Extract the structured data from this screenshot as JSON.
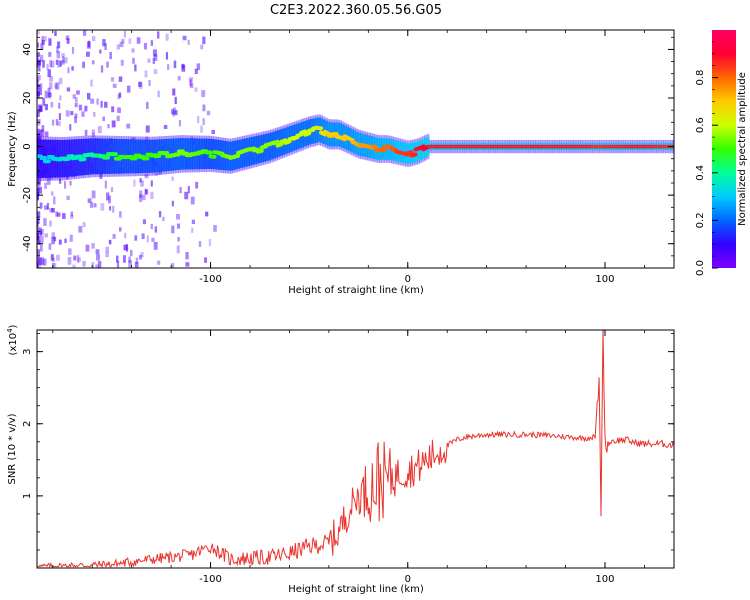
{
  "figure": {
    "title": "C2E3.2022.360.05.56.G05"
  },
  "colors": {
    "snr_line": "#e8352e",
    "ridge": "#e8333f",
    "axis": "#000000",
    "colormap": [
      "#7f00ff",
      "#3300ff",
      "#0066ff",
      "#00ccff",
      "#00ff99",
      "#33ff00",
      "#ccff00",
      "#ffcc00",
      "#ff6600",
      "#ff0033",
      "#ff0066"
    ]
  },
  "chart_data": [
    {
      "type": "heatmap",
      "title": "",
      "xlabel": "Height of straight line (km)",
      "ylabel": "Frequency (Hz)",
      "xlim": [
        -188,
        135
      ],
      "ylim": [
        -50,
        48
      ],
      "xticks": [
        -100,
        0,
        100
      ],
      "yticks": [
        -40,
        -20,
        0,
        20,
        40
      ],
      "grid": false,
      "ridge": {
        "name": "",
        "x": [
          -188,
          -175,
          -160,
          -145,
          -130,
          -115,
          -100,
          -90,
          -80,
          -70,
          -60,
          -50,
          -45,
          -40,
          -35,
          -30,
          -25,
          -20,
          -15,
          -10,
          -5,
          0,
          5,
          10,
          30,
          60,
          90,
          95,
          110,
          120,
          135
        ],
        "y": [
          -5,
          -5,
          -4,
          -4,
          -4,
          -3,
          -3,
          -4,
          -2,
          0,
          3,
          6,
          7,
          5,
          5,
          3,
          1,
          0,
          -1,
          -1,
          -2,
          -3,
          -2,
          0,
          0,
          0,
          0,
          0,
          0,
          0,
          0
        ],
        "amplitude": [
          0.3,
          0.35,
          0.4,
          0.5,
          0.5,
          0.55,
          0.5,
          0.55,
          0.55,
          0.55,
          0.6,
          0.6,
          0.65,
          0.7,
          0.7,
          0.7,
          0.75,
          0.75,
          0.8,
          0.8,
          0.85,
          0.85,
          0.9,
          0.9,
          0.9,
          0.9,
          0.9,
          0.85,
          0.9,
          0.9,
          0.85
        ]
      },
      "colorbar": {
        "label": "Normalized spectral amplitude",
        "range": [
          0,
          1
        ],
        "ticks": [
          "0.0",
          "0.2",
          "0.4",
          "0.6",
          "0.8"
        ]
      }
    },
    {
      "type": "line",
      "title": "",
      "xlabel": "Height of straight line (km)",
      "ylabel": "SNR (10 * v/v)",
      "scale_label": "(x10",
      "scale_exp": "4",
      "scale_close": ")",
      "xlim": [
        -188,
        135
      ],
      "ylim": [
        0.0,
        3.3
      ],
      "xticks": [
        -100,
        0,
        100
      ],
      "yticks": [
        1,
        2,
        3
      ],
      "grid": false,
      "series": [
        {
          "name": "",
          "x": [
            -188,
            -170,
            -150,
            -130,
            -110,
            -100,
            -90,
            -70,
            -60,
            -50,
            -40,
            -35,
            -30,
            -25,
            -20,
            -15,
            -10,
            -5,
            0,
            5,
            10,
            15,
            20,
            25,
            30,
            40,
            50,
            60,
            70,
            80,
            90,
            95,
            97,
            98,
            99,
            100,
            101,
            103,
            110,
            115,
            120,
            130,
            135
          ],
          "y": [
            0.02,
            0.03,
            0.05,
            0.12,
            0.18,
            0.3,
            0.12,
            0.15,
            0.2,
            0.3,
            0.35,
            0.5,
            0.8,
            1.0,
            1.1,
            1.2,
            1.25,
            1.3,
            1.35,
            1.4,
            1.5,
            1.6,
            1.7,
            1.78,
            1.82,
            1.85,
            1.85,
            1.85,
            1.84,
            1.82,
            1.8,
            1.82,
            2.6,
            0.8,
            3.3,
            1.75,
            1.7,
            1.76,
            1.78,
            1.74,
            1.72,
            1.72,
            1.7
          ],
          "color": "#e8352e"
        }
      ]
    }
  ]
}
